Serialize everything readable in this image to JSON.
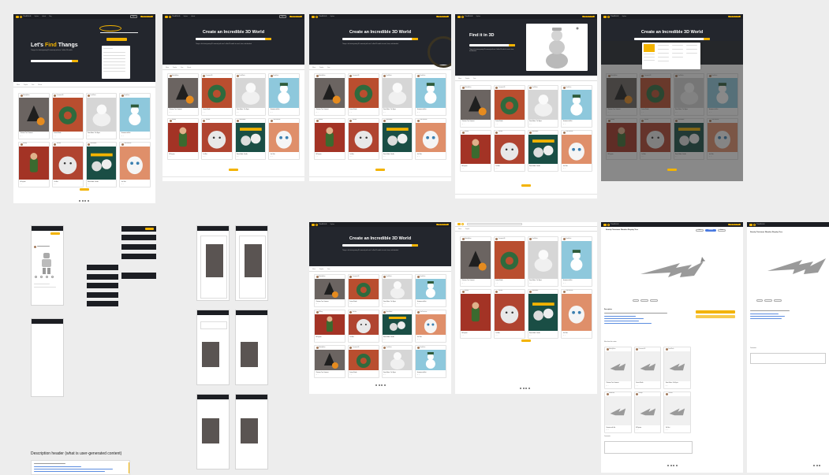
{
  "brand": {
    "name": "THANGS",
    "accent": "#f3b300",
    "dark": "#23262d"
  },
  "nav": {
    "links": [
      "Explore",
      "Upload",
      "Blog",
      "Pricing"
    ],
    "signin": "Log in",
    "signup": "Sign up for free"
  },
  "home": {
    "title_pre": "Let's ",
    "title_accent": "Find",
    "title_post": " Thangs",
    "subtitle": "Thangs is the fastest-growing 3D community with over 1 million 3D models",
    "cta": "Upload"
  },
  "explore": {
    "title": "Create an Incredible 3D World",
    "subtitle": "Thangs is the fastest growing 3D community with over 1 million 3D models to search, share, and download.",
    "search_placeholder": "Search for 3D models",
    "filters": [
      "Filters",
      "Popular",
      "Free",
      "Recent"
    ],
    "load_more": "Load More"
  },
  "findit": {
    "title": "Find it in 3D"
  },
  "cards": [
    {
      "creator": "HolidayMaker",
      "title": "Christmas Tree Ornament",
      "stats": "12 · 4",
      "color": "#6b6461",
      "art": "tree"
    },
    {
      "creator": "Ornaments3D",
      "title": "Festive Wreath",
      "stats": "8 · 2",
      "color": "#b94e2f",
      "art": "wreath"
    },
    {
      "creator": "FrostWorks",
      "title": "Snow Golem - Yeti Figure",
      "stats": "21 · 6",
      "color": "#d6d6d6",
      "art": "snow"
    },
    {
      "creator": "SnowPrints",
      "title": "Snowman with Hat",
      "stats": "15 · 3",
      "color": "#8ec8dc",
      "art": "snowman"
    },
    {
      "creator": "ElfShop",
      "title": "Elf Figurine",
      "stats": "9 · 1",
      "color": "#a33325",
      "art": "elf"
    },
    {
      "creator": "YetiLabs",
      "title": "Yeti Bust",
      "stats": "17 · 5",
      "color": "#b04430",
      "art": "yeti"
    },
    {
      "creator": "RemixModel",
      "title": "Remix Model - Bundle",
      "stats": "30 · 9",
      "color": "#1a4e45",
      "art": "remix"
    },
    {
      "creator": "CuteCreatures",
      "title": "Yeti Chibi",
      "stats": "11 · 2",
      "color": "#df8f6a",
      "art": "chibi"
    }
  ],
  "detail": {
    "title": "Sturdy Christmas Wooden Display Tree",
    "description_header": "Description",
    "buttons": [
      "Like",
      "Download",
      "Share"
    ],
    "comments": "Comments",
    "related": "More from this creator"
  },
  "note": {
    "text": "Description header (what is user-generated content)"
  },
  "footer": {
    "copyright": "© Thangs"
  }
}
